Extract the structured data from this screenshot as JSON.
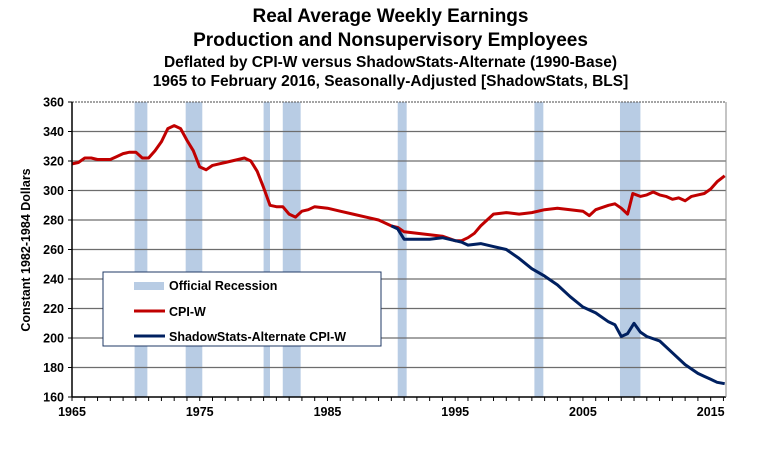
{
  "chart_data": {
    "type": "line",
    "title": "Real Average Weekly Earnings",
    "subtitle_lines": [
      "Production and Nonsupervisory Employees",
      "Deflated by CPI-W versus ShadowStats-Alternate (1990-Base)",
      "1965 to February 2016, Seasonally-Adjusted [ShadowStats, BLS]"
    ],
    "xlabel": "",
    "ylabel": "Constant 1982-1984 Dollars",
    "xlim": [
      1965,
      2016.2
    ],
    "ylim": [
      160,
      360
    ],
    "x_ticks": [
      1965,
      1975,
      1985,
      1995,
      2005,
      2015
    ],
    "y_ticks": [
      160,
      180,
      200,
      220,
      240,
      260,
      280,
      300,
      320,
      340,
      360
    ],
    "grid": true,
    "legend_position": "middle-left",
    "recessions": [
      {
        "start": 1969.9,
        "end": 1970.9
      },
      {
        "start": 1973.9,
        "end": 1975.2
      },
      {
        "start": 1980.0,
        "end": 1980.5
      },
      {
        "start": 1981.5,
        "end": 1982.9
      },
      {
        "start": 1990.5,
        "end": 1991.2
      },
      {
        "start": 2001.2,
        "end": 2001.9
      },
      {
        "start": 2007.9,
        "end": 2009.5
      }
    ],
    "series": [
      {
        "name": "CPI-W",
        "color": "#C00000",
        "x": [
          1965.0,
          1965.5,
          1966.0,
          1966.5,
          1967.0,
          1967.5,
          1968.0,
          1968.5,
          1969.0,
          1969.5,
          1970.0,
          1970.5,
          1971.0,
          1971.5,
          1972.0,
          1972.5,
          1973.0,
          1973.5,
          1974.0,
          1974.5,
          1975.0,
          1975.5,
          1976.0,
          1976.5,
          1977.0,
          1977.5,
          1978.0,
          1978.5,
          1979.0,
          1979.5,
          1980.0,
          1980.5,
          1981.0,
          1981.5,
          1982.0,
          1982.5,
          1983.0,
          1983.5,
          1984.0,
          1985.0,
          1986.0,
          1987.0,
          1988.0,
          1989.0,
          1990.0,
          1990.5,
          1991.0,
          1992.0,
          1993.0,
          1994.0,
          1995.0,
          1995.5,
          1996.0,
          1996.5,
          1997.0,
          1997.5,
          1998.0,
          1999.0,
          2000.0,
          2001.0,
          2002.0,
          2003.0,
          2004.0,
          2005.0,
          2005.5,
          2006.0,
          2007.0,
          2007.5,
          2008.0,
          2008.5,
          2008.9,
          2009.5,
          2010.0,
          2010.5,
          2011.0,
          2011.5,
          2012.0,
          2012.5,
          2013.0,
          2013.5,
          2014.0,
          2014.5,
          2015.0,
          2015.5,
          2016.1
        ],
        "values": [
          318,
          319,
          322,
          322,
          321,
          321,
          321,
          323,
          325,
          326,
          326,
          322,
          322,
          327,
          333,
          342,
          344,
          342,
          334,
          327,
          316,
          314,
          317,
          318,
          319,
          320,
          321,
          322,
          320,
          313,
          302,
          290,
          289,
          289,
          284,
          282,
          286,
          287,
          289,
          288,
          286,
          284,
          282,
          280,
          276,
          275,
          272,
          271,
          270,
          269,
          266,
          266,
          268,
          271,
          276,
          280,
          284,
          285,
          284,
          285,
          287,
          288,
          287,
          286,
          283,
          287,
          290,
          291,
          288,
          284,
          298,
          296,
          297,
          299,
          297,
          296,
          294,
          295,
          293,
          296,
          297,
          298,
          301,
          306,
          310
        ]
      },
      {
        "name": "ShadowStats-Alternate CPI-W",
        "color": "#002060",
        "x": [
          1990.0,
          1990.5,
          1991.0,
          1992.0,
          1993.0,
          1994.0,
          1995.0,
          1995.5,
          1996.0,
          1997.0,
          1998.0,
          1999.0,
          2000.0,
          2001.0,
          2002.0,
          2003.0,
          2004.0,
          2005.0,
          2006.0,
          2007.0,
          2007.5,
          2008.0,
          2008.5,
          2009.0,
          2009.5,
          2010.0,
          2011.0,
          2012.0,
          2013.0,
          2014.0,
          2014.5,
          2015.0,
          2015.5,
          2016.1
        ],
        "values": [
          276,
          274,
          267,
          267,
          267,
          268,
          266,
          265,
          263,
          264,
          262,
          260,
          254,
          247,
          242,
          236,
          228,
          221,
          217,
          211,
          209,
          201,
          203,
          210,
          204,
          201,
          198,
          190,
          182,
          176,
          174,
          172,
          170,
          169
        ]
      }
    ],
    "legend": [
      {
        "label": "Official Recession",
        "color": "#B8CCE4",
        "kind": "band"
      },
      {
        "label": "CPI-W",
        "color": "#C00000",
        "kind": "line"
      },
      {
        "label": "ShadowStats-Alternate CPI-W",
        "color": "#002060",
        "kind": "line"
      }
    ]
  }
}
